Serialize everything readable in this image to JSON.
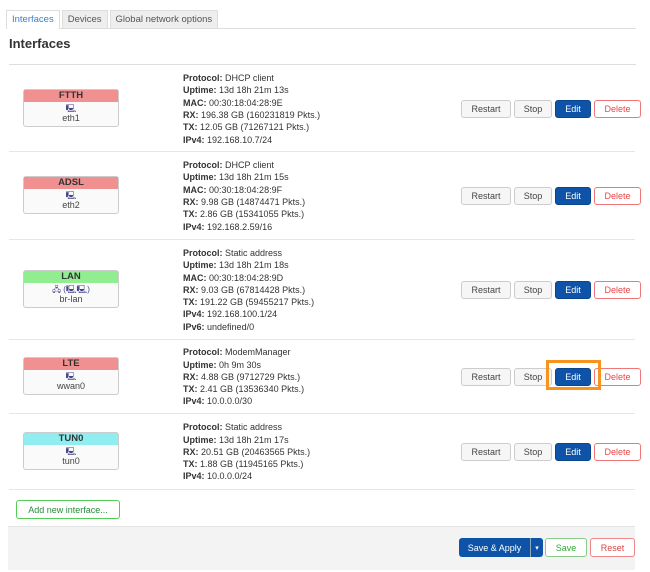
{
  "tabs": [
    "Interfaces",
    "Devices",
    "Global network options"
  ],
  "section_title": "Interfaces",
  "labels": {
    "protocol": "Protocol:",
    "uptime": "Uptime:",
    "mac": "MAC:",
    "rx": "RX:",
    "tx": "TX:",
    "ipv4": "IPv4:",
    "ipv6": "IPv6:"
  },
  "buttons": {
    "restart": "Restart",
    "stop": "Stop",
    "edit": "Edit",
    "delete": "Delete"
  },
  "interfaces": [
    {
      "name": "FTTH",
      "color": "#f09090",
      "device": "eth1",
      "icon": "ethernet-port",
      "protocol": "DHCP client",
      "uptime": "13d 18h 21m 13s",
      "mac": "00:30:18:04:28:9E",
      "rx": "196.38 GB (160231819 Pkts.)",
      "tx": "12.05 GB (71267121 Pkts.)",
      "ipv4": "192.168.10.7/24"
    },
    {
      "name": "ADSL",
      "color": "#f09090",
      "device": "eth2",
      "icon": "ethernet-port",
      "protocol": "DHCP client",
      "uptime": "13d 18h 21m 15s",
      "mac": "00:30:18:04:28:9F",
      "rx": "9.98 GB (14874471 Pkts.)",
      "tx": "2.86 GB (15341055 Pkts.)",
      "ipv4": "192.168.2.59/16"
    },
    {
      "name": "LAN",
      "color": "#90ee90",
      "device": "br-lan",
      "icon": "bridge",
      "protocol": "Static address",
      "uptime": "13d 18h 21m 18s",
      "mac": "00:30:18:04:28:9D",
      "rx": "9.03 GB (67814428 Pkts.)",
      "tx": "191.22 GB (59455217 Pkts.)",
      "ipv4": "192.168.100.1/24",
      "ipv6": "undefined/0"
    },
    {
      "name": "LTE",
      "color": "#f09090",
      "device": "wwan0",
      "icon": "ethernet-port",
      "protocol": "ModemManager",
      "uptime": "0h 9m 30s",
      "rx": "4.88 GB (9712729 Pkts.)",
      "tx": "2.41 GB (13536340 Pkts.)",
      "ipv4": "10.0.0.0/30"
    },
    {
      "name": "TUN0",
      "color": "#90eef0",
      "device": "tun0",
      "icon": "ethernet-port",
      "protocol": "Static address",
      "uptime": "13d 18h 21m 17s",
      "rx": "20.51 GB (20463565 Pkts.)",
      "tx": "1.88 GB (11945165 Pkts.)",
      "ipv4": "10.0.0.0/24"
    }
  ],
  "add_interface": "Add new interface...",
  "footer": {
    "save_apply": "Save & Apply",
    "dropdown": "▾",
    "save": "Save",
    "reset": "Reset"
  },
  "highlight_color": "#f7931e"
}
